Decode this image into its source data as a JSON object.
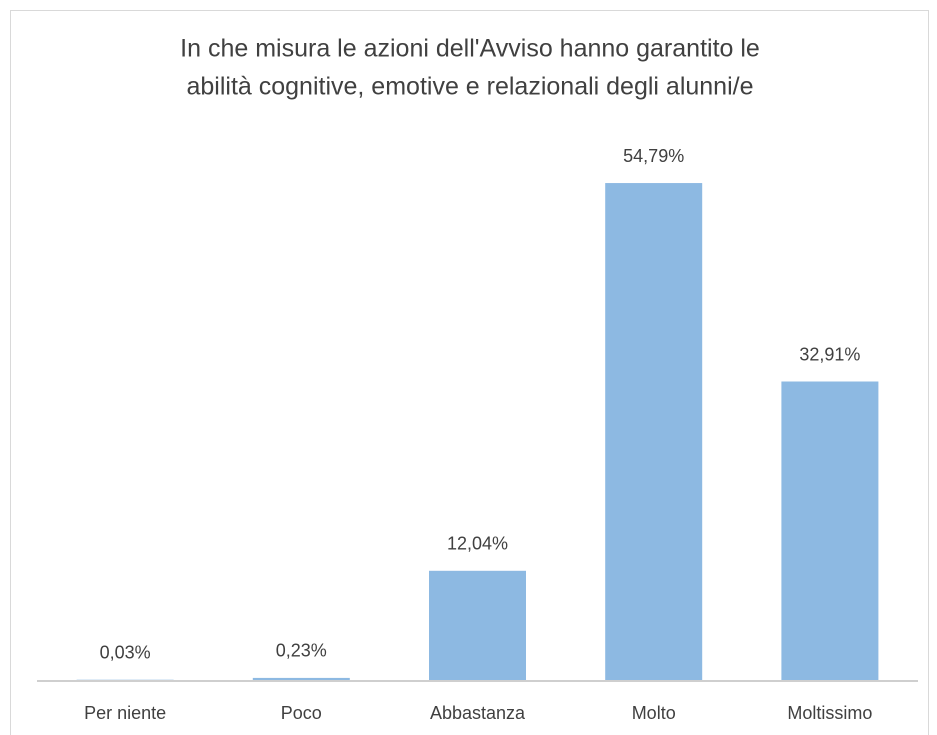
{
  "chart_data": {
    "type": "bar",
    "title": [
      "In che misura le azioni dell'Avviso hanno garantito le",
      "abilità cognitive, emotive e relazionali degli alunni/e"
    ],
    "categories": [
      "Per niente",
      "Poco",
      "Abbastanza",
      "Molto",
      "Moltissimo"
    ],
    "values": [
      0.03,
      0.23,
      12.04,
      54.79,
      32.91
    ],
    "value_labels": [
      "0,03%",
      "0,23%",
      "12,04%",
      "54,79%",
      "32,91%"
    ],
    "color": "#8db9e2"
  }
}
